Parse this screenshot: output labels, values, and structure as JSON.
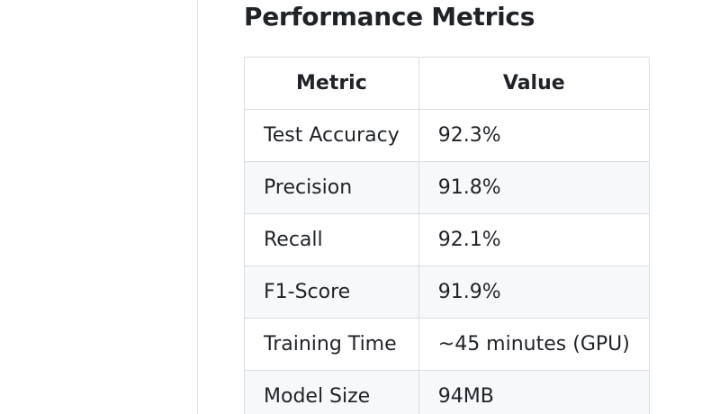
{
  "section": {
    "title": "Performance Metrics"
  },
  "table": {
    "headers": [
      "Metric",
      "Value"
    ],
    "rows": [
      [
        "Test Accuracy",
        "92.3%"
      ],
      [
        "Precision",
        "91.8%"
      ],
      [
        "Recall",
        "92.1%"
      ],
      [
        "F1-Score",
        "91.9%"
      ],
      [
        "Training Time",
        "~45 minutes (GPU)"
      ],
      [
        "Model Size",
        "94MB"
      ]
    ]
  }
}
